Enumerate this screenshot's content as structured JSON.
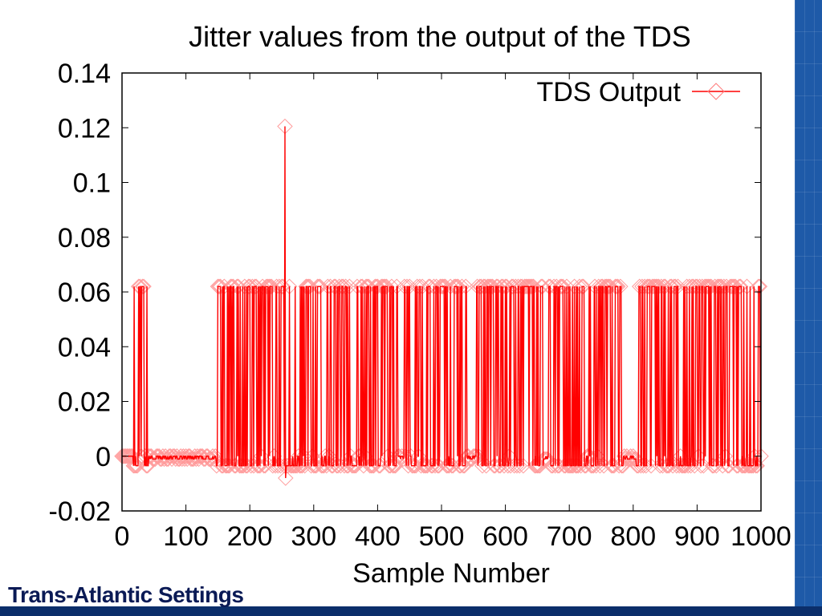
{
  "slide": {
    "caption": "Trans-Atlantic Settings",
    "accent_color": "#1e5aa8",
    "band_color": "#0b2e6a"
  },
  "chart_data": {
    "type": "line",
    "title": "Jitter values from the output of the TDS",
    "xlabel": "Sample Number",
    "ylabel": "",
    "xlim": [
      0,
      1000
    ],
    "ylim": [
      -0.02,
      0.14
    ],
    "x_ticks": [
      0,
      100,
      200,
      300,
      400,
      500,
      600,
      700,
      800,
      900,
      1000
    ],
    "x_tick_labels": [
      "0",
      "100",
      "200",
      "300",
      "400",
      "500",
      "600",
      "700",
      "800",
      "900",
      "1000"
    ],
    "y_ticks": [
      -0.02,
      0,
      0.02,
      0.04,
      0.06,
      0.08,
      0.1,
      0.12,
      0.14
    ],
    "y_tick_labels": [
      "-0.02",
      "0",
      "0.02",
      "0.04",
      "0.06",
      "0.08",
      "0.1",
      "0.12",
      "0.14"
    ],
    "grid": false,
    "legend_position": "top-right",
    "series": [
      {
        "name": "TDS Output",
        "color": "#ff0000",
        "marker": "diamond",
        "levels": {
          "high": 0.062,
          "zero": 0.0,
          "low": -0.0035
        },
        "spike": {
          "x": 255,
          "y": 0.1205
        },
        "dip": {
          "x": 255,
          "y": -0.008
        },
        "active_ranges": [
          [
            18,
            42
          ],
          [
            148,
            432
          ],
          [
            442,
            540
          ],
          [
            555,
            660
          ],
          [
            668,
            785
          ],
          [
            805,
            1000
          ]
        ],
        "quiet_ranges": [
          [
            42,
            148
          ],
          [
            432,
            442
          ],
          [
            540,
            555
          ],
          [
            660,
            668
          ],
          [
            785,
            805
          ]
        ]
      }
    ]
  }
}
